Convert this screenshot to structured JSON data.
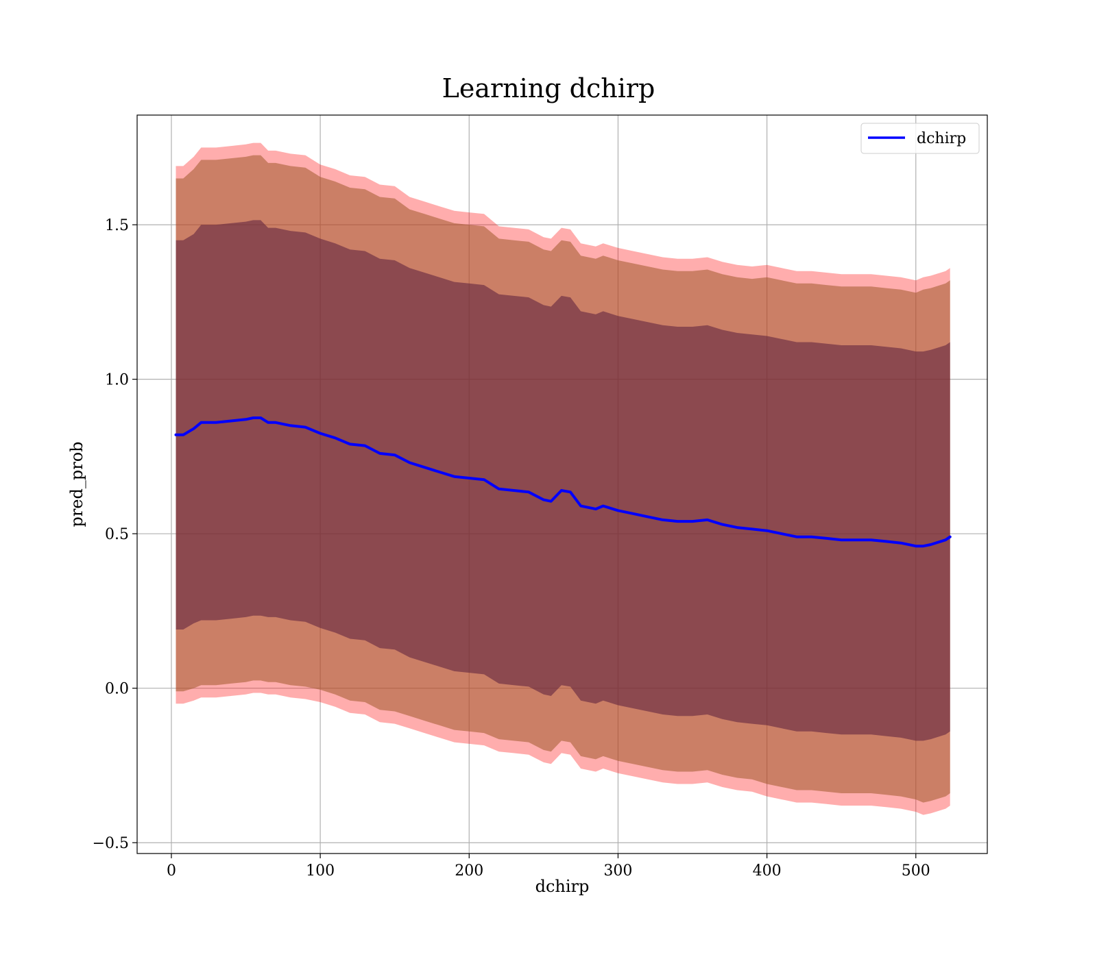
{
  "chart_data": {
    "type": "line",
    "title": "Learning dchirp",
    "xlabel": "dchirp",
    "ylabel": "pred_prob",
    "xlim": [
      -23,
      548
    ],
    "ylim": [
      -0.535,
      1.855
    ],
    "xticks": [
      0,
      100,
      200,
      300,
      400,
      500
    ],
    "xtick_labels": [
      "0",
      "100",
      "200",
      "300",
      "400",
      "500"
    ],
    "yticks": [
      -0.5,
      0.0,
      0.5,
      1.0,
      1.5
    ],
    "ytick_labels": [
      "−0.5",
      "0.0",
      "0.5",
      "1.0",
      "1.5"
    ],
    "grid": true,
    "legend": {
      "position": "top-right",
      "entries": [
        "dchirp"
      ]
    },
    "colors": {
      "line": "#0000ff",
      "band_outer": "#ff0000",
      "band_middle": "#a05a2c",
      "band_inner": "#5a1e3c"
    },
    "x": [
      3,
      8,
      15,
      20,
      30,
      40,
      50,
      55,
      60,
      65,
      70,
      80,
      90,
      100,
      110,
      120,
      130,
      140,
      150,
      160,
      170,
      180,
      190,
      200,
      210,
      220,
      230,
      240,
      250,
      255,
      262,
      268,
      275,
      285,
      290,
      300,
      310,
      320,
      330,
      340,
      350,
      360,
      370,
      380,
      390,
      400,
      410,
      420,
      430,
      440,
      450,
      455,
      460,
      470,
      480,
      490,
      500,
      505,
      510,
      520,
      523
    ],
    "series": [
      {
        "name": "dchirp",
        "values": [
          0.82,
          0.82,
          0.84,
          0.86,
          0.86,
          0.865,
          0.87,
          0.875,
          0.875,
          0.86,
          0.86,
          0.85,
          0.845,
          0.825,
          0.81,
          0.79,
          0.785,
          0.76,
          0.755,
          0.73,
          0.715,
          0.7,
          0.685,
          0.68,
          0.675,
          0.645,
          0.64,
          0.635,
          0.61,
          0.605,
          0.64,
          0.635,
          0.59,
          0.58,
          0.59,
          0.575,
          0.565,
          0.555,
          0.545,
          0.54,
          0.54,
          0.545,
          0.53,
          0.52,
          0.515,
          0.51,
          0.5,
          0.49,
          0.49,
          0.485,
          0.48,
          0.48,
          0.48,
          0.48,
          0.475,
          0.47,
          0.46,
          0.46,
          0.465,
          0.48,
          0.49
        ],
        "bands": {
          "outer_sd": [
            0.87,
            0.87,
            0.88,
            0.89,
            0.89,
            0.89,
            0.89,
            0.89,
            0.89,
            0.88,
            0.88,
            0.88,
            0.88,
            0.87,
            0.87,
            0.87,
            0.87,
            0.87,
            0.87,
            0.86,
            0.86,
            0.86,
            0.86,
            0.86,
            0.86,
            0.85,
            0.85,
            0.85,
            0.85,
            0.85,
            0.85,
            0.85,
            0.85,
            0.85,
            0.85,
            0.85,
            0.85,
            0.85,
            0.85,
            0.85,
            0.85,
            0.85,
            0.85,
            0.85,
            0.85,
            0.86,
            0.86,
            0.86,
            0.86,
            0.86,
            0.86,
            0.86,
            0.86,
            0.86,
            0.86,
            0.86,
            0.86,
            0.87,
            0.87,
            0.87,
            0.87
          ],
          "middle_sd": [
            0.83,
            0.83,
            0.84,
            0.85,
            0.85,
            0.85,
            0.85,
            0.85,
            0.85,
            0.84,
            0.84,
            0.84,
            0.84,
            0.83,
            0.83,
            0.83,
            0.83,
            0.83,
            0.83,
            0.82,
            0.82,
            0.82,
            0.82,
            0.82,
            0.82,
            0.81,
            0.81,
            0.81,
            0.81,
            0.81,
            0.81,
            0.81,
            0.81,
            0.81,
            0.81,
            0.81,
            0.81,
            0.81,
            0.81,
            0.81,
            0.81,
            0.81,
            0.81,
            0.81,
            0.81,
            0.82,
            0.82,
            0.82,
            0.82,
            0.82,
            0.82,
            0.82,
            0.82,
            0.82,
            0.82,
            0.82,
            0.82,
            0.83,
            0.83,
            0.83,
            0.83
          ],
          "inner_sd": [
            0.63,
            0.63,
            0.63,
            0.64,
            0.64,
            0.64,
            0.64,
            0.64,
            0.64,
            0.63,
            0.63,
            0.63,
            0.63,
            0.63,
            0.63,
            0.63,
            0.63,
            0.63,
            0.63,
            0.63,
            0.63,
            0.63,
            0.63,
            0.63,
            0.63,
            0.63,
            0.63,
            0.63,
            0.63,
            0.63,
            0.63,
            0.63,
            0.63,
            0.63,
            0.63,
            0.63,
            0.63,
            0.63,
            0.63,
            0.63,
            0.63,
            0.63,
            0.63,
            0.63,
            0.63,
            0.63,
            0.63,
            0.63,
            0.63,
            0.63,
            0.63,
            0.63,
            0.63,
            0.63,
            0.63,
            0.63,
            0.63,
            0.63,
            0.63,
            0.63,
            0.63
          ]
        }
      }
    ]
  }
}
